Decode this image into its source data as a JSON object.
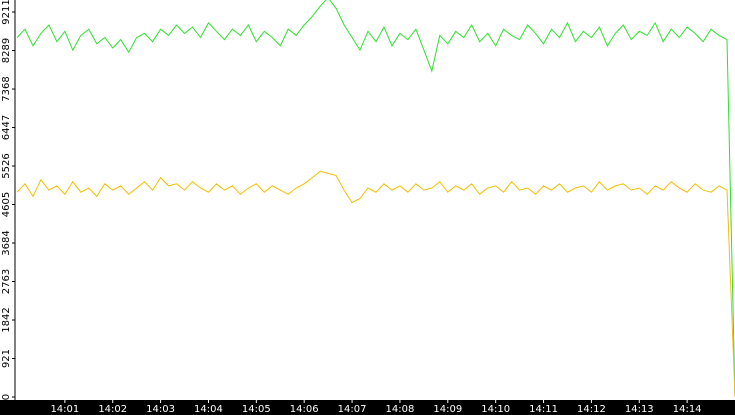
{
  "chart_data": {
    "type": "line",
    "categories": [
      null,
      null,
      null,
      null,
      null,
      null,
      "14:01",
      null,
      null,
      null,
      null,
      null,
      "14:02",
      null,
      null,
      null,
      null,
      null,
      "14:03",
      null,
      null,
      null,
      null,
      null,
      "14:04",
      null,
      null,
      null,
      null,
      null,
      "14:05",
      null,
      null,
      null,
      null,
      null,
      "14:06",
      null,
      null,
      null,
      null,
      null,
      "14:07",
      null,
      null,
      null,
      null,
      null,
      "14:08",
      null,
      null,
      null,
      null,
      null,
      "14:09",
      null,
      null,
      null,
      null,
      null,
      "14:10",
      null,
      null,
      null,
      null,
      null,
      "14:11",
      null,
      null,
      null,
      null,
      null,
      "14:12",
      null,
      null,
      null,
      null,
      null,
      "14:13",
      null,
      null,
      null,
      null,
      null,
      "14:14",
      null,
      null,
      null,
      null,
      null,
      null
    ],
    "series": [
      {
        "color": "#2fe02f",
        "values": [
          8600,
          8800,
          8400,
          8700,
          8900,
          8500,
          8750,
          8300,
          8650,
          8800,
          8450,
          8600,
          8350,
          8550,
          8250,
          8600,
          8700,
          8500,
          8800,
          8650,
          8900,
          8700,
          8850,
          8600,
          8950,
          8750,
          8550,
          8800,
          8650,
          8900,
          8500,
          8750,
          8600,
          8400,
          8800,
          8650,
          8900,
          9100,
          9350,
          9550,
          9300,
          8900,
          8600,
          8300,
          8750,
          8500,
          8850,
          8400,
          8700,
          8550,
          8800,
          8300,
          7800,
          8650,
          8450,
          8750,
          8600,
          8900,
          8500,
          8700,
          8400,
          8800,
          8650,
          8550,
          8900,
          8700,
          8450,
          8800,
          8600,
          8950,
          8500,
          8750,
          8600,
          8850,
          8400,
          8700,
          8900,
          8550,
          8750,
          8650,
          8950,
          8500,
          8800,
          8600,
          8850,
          8700,
          8500,
          8800,
          8650,
          8550,
          0
        ]
      },
      {
        "color": "#f0c000",
        "values": [
          4900,
          5100,
          4800,
          5200,
          4950,
          5050,
          4850,
          5150,
          4900,
          5000,
          4800,
          5100,
          4950,
          5050,
          4850,
          5000,
          5150,
          4950,
          5250,
          5050,
          5100,
          4950,
          5150,
          5000,
          4900,
          5100,
          4950,
          5050,
          4850,
          5000,
          5100,
          4900,
          5050,
          4950,
          4850,
          5000,
          5100,
          5250,
          5400,
          5350,
          5300,
          4950,
          4650,
          4750,
          5000,
          4900,
          5100,
          4950,
          5050,
          4900,
          5100,
          4950,
          5000,
          5150,
          4900,
          5050,
          4950,
          5100,
          4850,
          5000,
          5050,
          4900,
          5150,
          4950,
          5000,
          4850,
          5050,
          4950,
          5100,
          4900,
          5000,
          5050,
          4900,
          5150,
          4950,
          5050,
          5100,
          4950,
          5000,
          4850,
          5050,
          4950,
          5150,
          5000,
          4900,
          5100,
          4950,
          4900,
          5050,
          4950,
          0
        ]
      }
    ],
    "ylim": [
      0,
      9211
    ],
    "yticks": [
      0,
      921,
      1842,
      2763,
      3684,
      4605,
      5526,
      6447,
      7368,
      8289,
      9211
    ]
  }
}
